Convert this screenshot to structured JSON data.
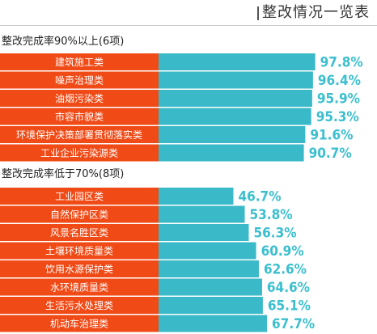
{
  "header": {
    "title": "整改情况一览表"
  },
  "colors": {
    "category_fill": "#f04a16",
    "bar_fill": "#3ab9c8",
    "value_text": "#3bbfcf",
    "row_divider": "#ffffff"
  },
  "chart_data": [
    {
      "type": "bar",
      "title": "整改完成率90%以上(6项)",
      "unit": "%",
      "categories": [
        "建筑施工类",
        "噪声治理类",
        "油烟污染类",
        "市容市貌类",
        "环境保护决策部署贯彻落实类",
        "工业企业污染源类"
      ],
      "values": [
        97.8,
        96.4,
        95.9,
        95.3,
        91.6,
        90.7
      ],
      "value_labels": [
        "97.8%",
        "96.4%",
        "95.9%",
        "95.3%",
        "91.6%",
        "90.7%"
      ],
      "xlim": [
        0,
        100
      ]
    },
    {
      "type": "bar",
      "title": "整改完成率低于70%(8项)",
      "unit": "%",
      "categories": [
        "工业园区类",
        "自然保护区类",
        "风景名胜区类",
        "土壤环境质量类",
        "饮用水源保护类",
        "水环境质量类",
        "生活污水处理类",
        "机动车治理类"
      ],
      "values": [
        46.7,
        53.8,
        56.3,
        60.9,
        62.6,
        64.6,
        65.1,
        67.7
      ],
      "value_labels": [
        "46.7%",
        "53.8%",
        "56.3%",
        "60.9%",
        "62.6%",
        "64.6%",
        "65.1%",
        "67.7%"
      ],
      "xlim": [
        0,
        100
      ]
    }
  ]
}
